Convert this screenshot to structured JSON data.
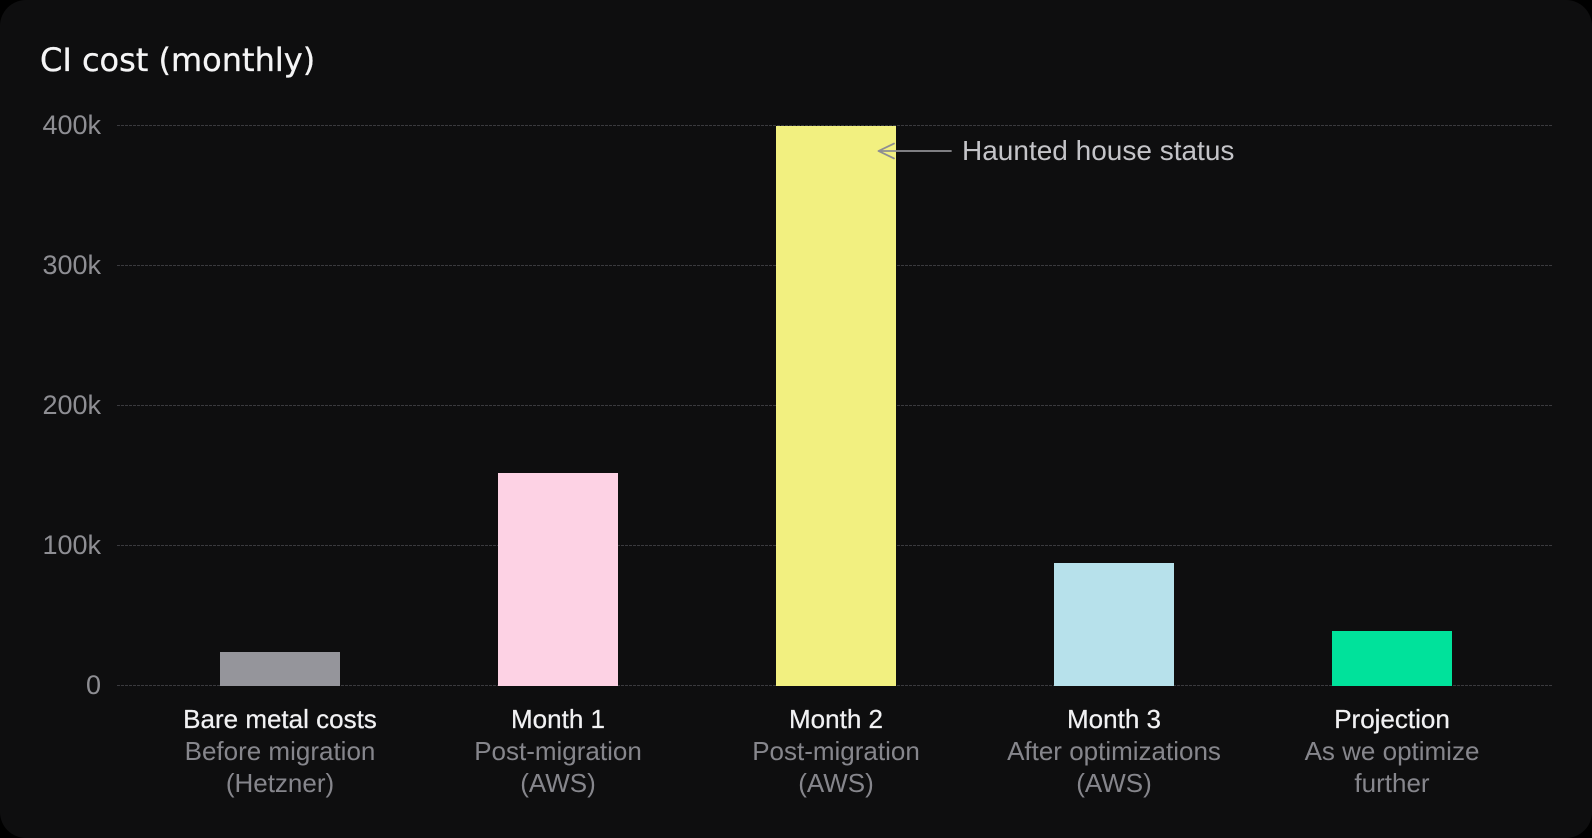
{
  "chart_data": {
    "type": "bar",
    "title": "CI cost (monthly)",
    "categories": [
      {
        "label": "Bare metal costs",
        "sublines": [
          "Before migration",
          "(Hetzner)"
        ]
      },
      {
        "label": "Month 1",
        "sublines": [
          "Post-migration",
          "(AWS)"
        ]
      },
      {
        "label": "Month 2",
        "sublines": [
          "Post-migration",
          "(AWS)"
        ]
      },
      {
        "label": "Month 3",
        "sublines": [
          "After optimizations",
          "(AWS)"
        ]
      },
      {
        "label": "Projection",
        "sublines": [
          "As we optimize",
          "further"
        ]
      }
    ],
    "values": [
      24000,
      152000,
      400000,
      88000,
      39000
    ],
    "colors": [
      "#95959b",
      "#fdd2e4",
      "#f2f080",
      "#b7e1eb",
      "#00e29b"
    ],
    "ylim": [
      0,
      400000
    ],
    "yticks": [
      {
        "value": 0,
        "label": "0"
      },
      {
        "value": 100000,
        "label": "100k"
      },
      {
        "value": 200000,
        "label": "200k"
      },
      {
        "value": 300000,
        "label": "300k"
      },
      {
        "value": 400000,
        "label": "400k"
      }
    ],
    "grid": "horizontal-dashed",
    "legend": "none"
  },
  "annotation": {
    "text": "Haunted house status",
    "target_category": "Month 2"
  },
  "colors": {
    "background": "#0e0e0f",
    "title": "#f5f5f6",
    "axis_label": "#8e8e93",
    "x_label_primary": "#f1f1f3",
    "x_label_secondary": "#86868c",
    "gridline": "#3a3a3e",
    "annotation_text": "#c4c4c8",
    "arrow": "#8e8e93"
  }
}
